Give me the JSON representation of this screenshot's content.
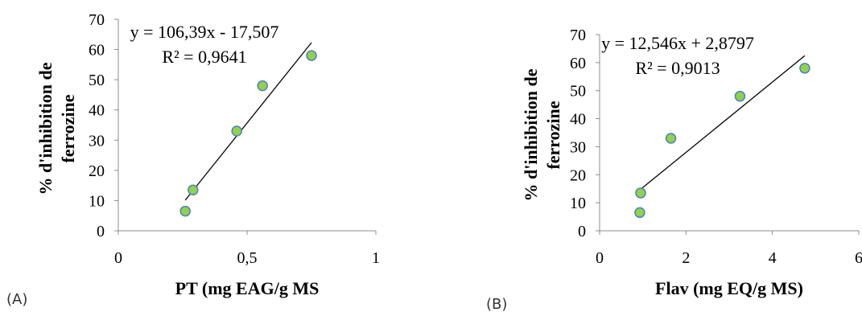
{
  "charts": [
    {
      "panel_label": "(A)",
      "chart_data": {
        "type": "scatter",
        "xlabel": "PT (mg EAG/g MS",
        "ylabel_lines": [
          "% d'inhibition de",
          "ferrozine"
        ],
        "xlim": [
          0,
          1
        ],
        "ylim": [
          0,
          70
        ],
        "xticks": [
          0,
          0.5,
          1
        ],
        "xtick_labels": [
          "0",
          "0,5",
          "1"
        ],
        "yticks": [
          0,
          10,
          20,
          30,
          40,
          50,
          60,
          70
        ],
        "ytick_labels": [
          "0",
          "10",
          "20",
          "30",
          "40",
          "50",
          "60",
          "70"
        ],
        "points": [
          {
            "x": 0.26,
            "y": 6.5
          },
          {
            "x": 0.29,
            "y": 13.5
          },
          {
            "x": 0.46,
            "y": 33
          },
          {
            "x": 0.56,
            "y": 48
          },
          {
            "x": 0.75,
            "y": 58
          }
        ],
        "trendline": {
          "slope": 106.39,
          "intercept": -17.507,
          "x_range": [
            0.26,
            0.75
          ]
        },
        "equation": "y = 106,39x - 17,507",
        "r2": "R² = 0,9641",
        "marker_fill": "#92d050",
        "marker_stroke": "#4f81bd",
        "grid": false
      }
    },
    {
      "panel_label": "(B)",
      "chart_data": {
        "type": "scatter",
        "xlabel": "Flav (mg EQ/g MS)",
        "ylabel_lines": [
          "% d'inhibition de",
          "ferrozine"
        ],
        "xlim": [
          0,
          6
        ],
        "ylim": [
          0,
          70
        ],
        "xticks": [
          0,
          2,
          4,
          6
        ],
        "xtick_labels": [
          "0",
          "2",
          "4",
          "6"
        ],
        "yticks": [
          0,
          10,
          20,
          30,
          40,
          50,
          60,
          70
        ],
        "ytick_labels": [
          "0",
          "10",
          "20",
          "30",
          "40",
          "50",
          "60",
          "70"
        ],
        "points": [
          {
            "x": 0.93,
            "y": 6.5
          },
          {
            "x": 0.95,
            "y": 13.5
          },
          {
            "x": 1.65,
            "y": 33
          },
          {
            "x": 3.25,
            "y": 48
          },
          {
            "x": 4.75,
            "y": 58
          }
        ],
        "trendline": {
          "slope": 12.546,
          "intercept": 2.8797,
          "x_range": [
            0.95,
            4.75
          ]
        },
        "equation": "y = 12,546x + 2,8797",
        "r2": "R² = 0,9013",
        "marker_fill": "#92d050",
        "marker_stroke": "#4f81bd",
        "grid": false
      }
    }
  ]
}
